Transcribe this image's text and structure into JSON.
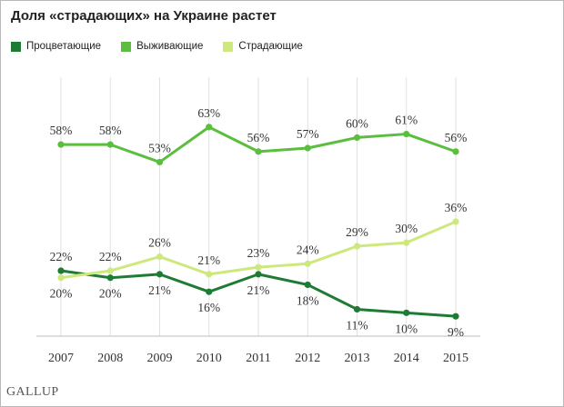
{
  "page": {
    "title": "Доля «страдающих» на Украине растет",
    "logo": "GALLUP"
  },
  "chart_data": {
    "type": "line",
    "title": "Доля «страдающих» на Украине растет",
    "xlabel": "",
    "ylabel": "",
    "x": [
      "2007",
      "2008",
      "2009",
      "2010",
      "2011",
      "2012",
      "2013",
      "2014",
      "2015"
    ],
    "ylim": [
      0,
      70
    ],
    "grid": "vertical",
    "legend_position": "top-left",
    "series": [
      {
        "name": "Процветающие",
        "color": "#1e7b34",
        "values": [
          22,
          20,
          21,
          16,
          21,
          18,
          11,
          10,
          9
        ],
        "labels": [
          "22%",
          "20%",
          "21%",
          "16%",
          "21%",
          "18%",
          "11%",
          "10%",
          "9%"
        ]
      },
      {
        "name": "Выживающие",
        "color": "#5bbe3f",
        "values": [
          58,
          58,
          53,
          63,
          56,
          57,
          60,
          61,
          56
        ],
        "labels": [
          "58%",
          "58%",
          "53%",
          "63%",
          "56%",
          "57%",
          "60%",
          "61%",
          "56%"
        ]
      },
      {
        "name": "Страдающие",
        "color": "#cde87c",
        "values": [
          20,
          22,
          26,
          21,
          23,
          24,
          29,
          30,
          36
        ],
        "labels": [
          "20%",
          "22%",
          "26%",
          "21%",
          "23%",
          "24%",
          "29%",
          "30%",
          "36%"
        ]
      }
    ]
  }
}
